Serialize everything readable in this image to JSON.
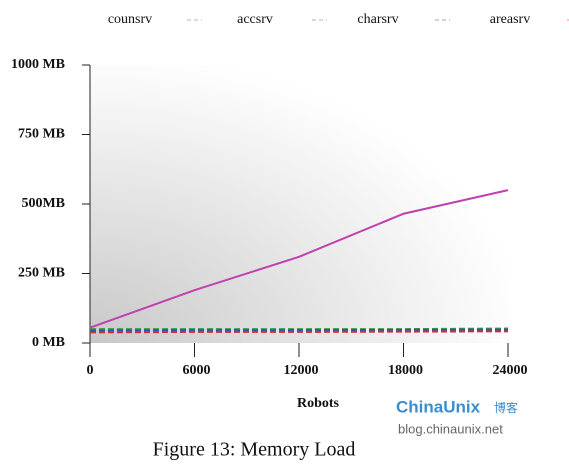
{
  "chart_data": {
    "type": "line",
    "caption": "Figure 13: Memory Load",
    "x_label": "Robots",
    "x": [
      0,
      6000,
      12000,
      18000,
      24000
    ],
    "series": [
      {
        "name": "counsrv",
        "color": "#c040b0",
        "values": [
          55,
          190,
          310,
          465,
          550
        ]
      },
      {
        "name": "accsrv",
        "color": "#30a040",
        "values": [
          50,
          50,
          50,
          50,
          52
        ]
      },
      {
        "name": "charsrv",
        "color": "#3050c0",
        "values": [
          45,
          46,
          46,
          47,
          48
        ]
      },
      {
        "name": "areasrv",
        "color": "#d03030",
        "values": [
          38,
          40,
          40,
          41,
          42
        ]
      }
    ],
    "xlim": [
      0,
      24000
    ],
    "xticks": [
      0,
      6000,
      12000,
      18000,
      24000
    ],
    "ylim": [
      0,
      1000
    ],
    "yticks": [
      {
        "value": 0,
        "label": "0 MB"
      },
      {
        "value": 250,
        "label": "250 MB"
      },
      {
        "value": 500,
        "label": "500MB"
      },
      {
        "value": 750,
        "label": "750 MB"
      },
      {
        "value": 1000,
        "label": "1000 MB"
      }
    ],
    "grid": false
  },
  "watermark": {
    "brand": "ChinaUnix",
    "suffix": "博客",
    "url": "blog.chinaunix.net"
  }
}
